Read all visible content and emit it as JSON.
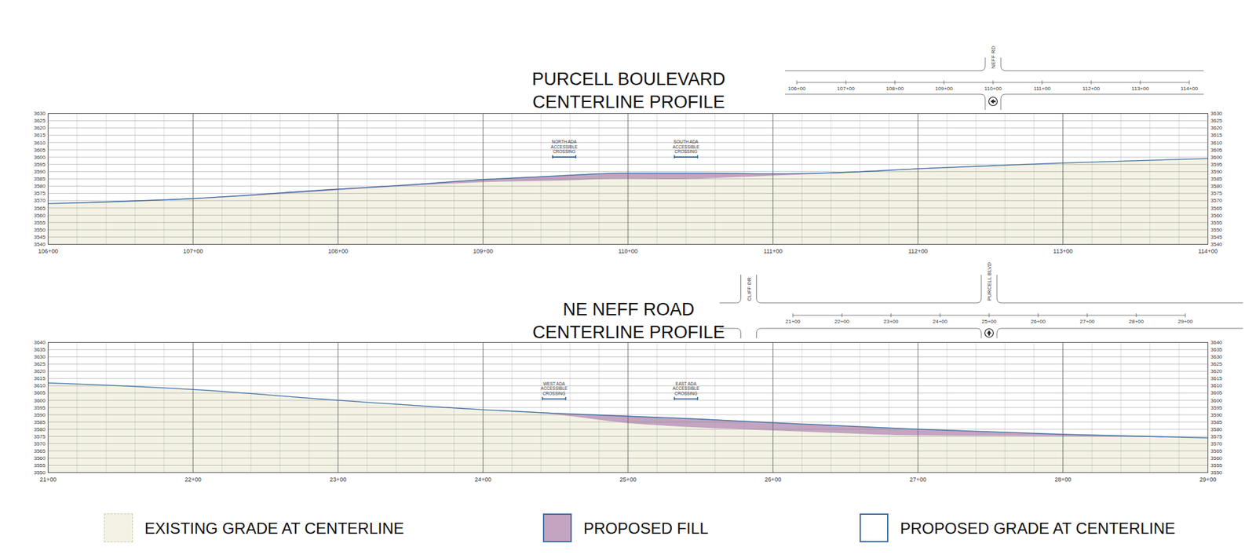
{
  "chart_data": [
    {
      "type": "profile",
      "title": "PURCELL BOULEVARD\nCENTERLINE PROFILE",
      "x": [
        10600,
        10700,
        10800,
        10850,
        10900,
        10950,
        11000,
        11030,
        11050,
        11100,
        11150,
        11200,
        11300,
        11400
      ],
      "xlim": [
        10600,
        11400
      ],
      "xticks": [
        {
          "value": 10600,
          "label": "106+00"
        },
        {
          "value": 10700,
          "label": "107+00"
        },
        {
          "value": 10800,
          "label": "108+00"
        },
        {
          "value": 10900,
          "label": "109+00"
        },
        {
          "value": 11000,
          "label": "110+00"
        },
        {
          "value": 11100,
          "label": "111+00"
        },
        {
          "value": 11200,
          "label": "112+00"
        },
        {
          "value": 11300,
          "label": "113+00"
        },
        {
          "value": 11400,
          "label": "114+00"
        }
      ],
      "ylim": [
        3540,
        3630
      ],
      "yticks": [
        3540,
        3545,
        3550,
        3555,
        3560,
        3565,
        3570,
        3575,
        3580,
        3585,
        3590,
        3595,
        3600,
        3605,
        3610,
        3615,
        3620,
        3625,
        3630
      ],
      "grid": true,
      "series": [
        {
          "name": "EXISTING GRADE AT CENTERLINE",
          "type": "area",
          "color": "#f3f2e4",
          "values": [
            3568,
            3571,
            3577,
            3580,
            3582.5,
            3583.5,
            3585,
            3584.5,
            3585,
            3587,
            3589,
            3591.5,
            3596,
            3599
          ]
        },
        {
          "name": "PROPOSED GRADE AT CENTERLINE",
          "type": "line",
          "color": "#3d6fa5",
          "values": [
            3568,
            3571.5,
            3578,
            3581,
            3584.5,
            3587,
            3589,
            3589,
            3589,
            3588.5,
            3589.5,
            3592,
            3596,
            3599
          ]
        }
      ],
      "fill": {
        "name": "PROPOSED FILL",
        "color": "#c3a4c1"
      },
      "annotations": [
        {
          "text": "NORTH ADA\nACCESSIBLE\nCROSSING",
          "x1": 10948,
          "x2": 10964,
          "y": 3600
        },
        {
          "text": "SOUTH ADA\nACCESSIBLE\nCROSSING",
          "x1": 11032,
          "x2": 11048,
          "y": 3600
        }
      ],
      "inset": {
        "cross_streets": [
          {
            "label": "NEFF RD",
            "station": 11000
          }
        ]
      }
    },
    {
      "type": "profile",
      "title": "NE NEFF ROAD\nCENTERLINE PROFILE",
      "x": [
        2100,
        2200,
        2300,
        2400,
        2450,
        2500,
        2550,
        2600,
        2700,
        2800,
        2900
      ],
      "xlim": [
        2100,
        2900
      ],
      "xticks": [
        {
          "value": 2100,
          "label": "21+00"
        },
        {
          "value": 2200,
          "label": "22+00"
        },
        {
          "value": 2300,
          "label": "23+00"
        },
        {
          "value": 2400,
          "label": "24+00"
        },
        {
          "value": 2500,
          "label": "25+00"
        },
        {
          "value": 2600,
          "label": "26+00"
        },
        {
          "value": 2700,
          "label": "27+00"
        },
        {
          "value": 2800,
          "label": "28+00"
        },
        {
          "value": 2900,
          "label": "29+00"
        }
      ],
      "ylim": [
        3550,
        3640
      ],
      "yticks": [
        3550,
        3555,
        3560,
        3565,
        3570,
        3575,
        3580,
        3585,
        3590,
        3595,
        3600,
        3605,
        3610,
        3615,
        3620,
        3625,
        3630,
        3635,
        3640
      ],
      "grid": true,
      "series": [
        {
          "name": "EXISTING GRADE AT CENTERLINE",
          "type": "area",
          "color": "#f3f2e4",
          "values": [
            3612,
            3607.5,
            3600,
            3593.5,
            3590,
            3584,
            3581,
            3579,
            3575.5,
            3575,
            3574
          ]
        },
        {
          "name": "PROPOSED GRADE AT CENTERLINE",
          "type": "line",
          "color": "#3d6fa5",
          "values": [
            3612,
            3607.5,
            3600,
            3593.5,
            3591,
            3589,
            3587,
            3584.5,
            3580,
            3576.5,
            3574
          ]
        }
      ],
      "fill": {
        "name": "PROPOSED FILL",
        "color": "#c3a4c1"
      },
      "annotations": [
        {
          "text": "WEST ADA\nACCESSIBLE\nCROSSING",
          "x1": 2441,
          "x2": 2457,
          "y": 3601
        },
        {
          "text": "EAST ADA\nACCESSIBLE\nCROSSING",
          "x1": 2532,
          "x2": 2548,
          "y": 3601
        }
      ],
      "inset": {
        "cross_streets": [
          {
            "label": "CLIFF DR",
            "station": 2010
          },
          {
            "label": "PURCELL BLVD",
            "station": 2500
          }
        ]
      },
      "legend": "bottom"
    }
  ]
}
